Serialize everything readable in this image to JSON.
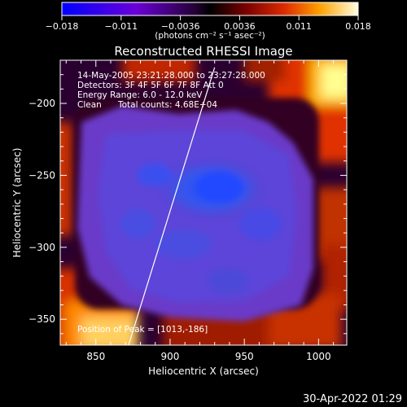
{
  "colorbar": {
    "tick_labels": [
      "−0.018",
      "−0.011",
      "−0.0036",
      "0.0036",
      "0.011",
      "0.018"
    ],
    "units_label": "(photons cm⁻² s⁻¹ asec⁻²)",
    "range": [
      -0.018,
      0.018
    ]
  },
  "chart_data": {
    "type": "heatmap",
    "title": "Reconstructed RHESSI Image",
    "xlabel": "Heliocentric X (arcsec)",
    "ylabel": "Heliocentric Y (arcsec)",
    "xlim": [
      826,
      1019
    ],
    "ylim": [
      -368,
      -170
    ],
    "x_ticks": [
      850,
      900,
      950,
      1000
    ],
    "y_ticks": [
      -200,
      -250,
      -300,
      -350
    ],
    "annotations": [
      "14-May-2005 23:21:28.000 to 23:27:28.000",
      "Detectors: 3F 4F 5F 6F 7F 8F Att 0",
      "Energy Range: 6.0 - 12.0 keV",
      "Clean",
      "Total counts: 4.68E+04"
    ],
    "peak_label": "Position of Peak = [1013,-186]",
    "peak": [
      1013,
      -186
    ],
    "limb_line": [
      [
        930,
        -175
      ],
      [
        872,
        -368
      ]
    ]
  },
  "timestamp": "30-Apr-2022 01:29"
}
